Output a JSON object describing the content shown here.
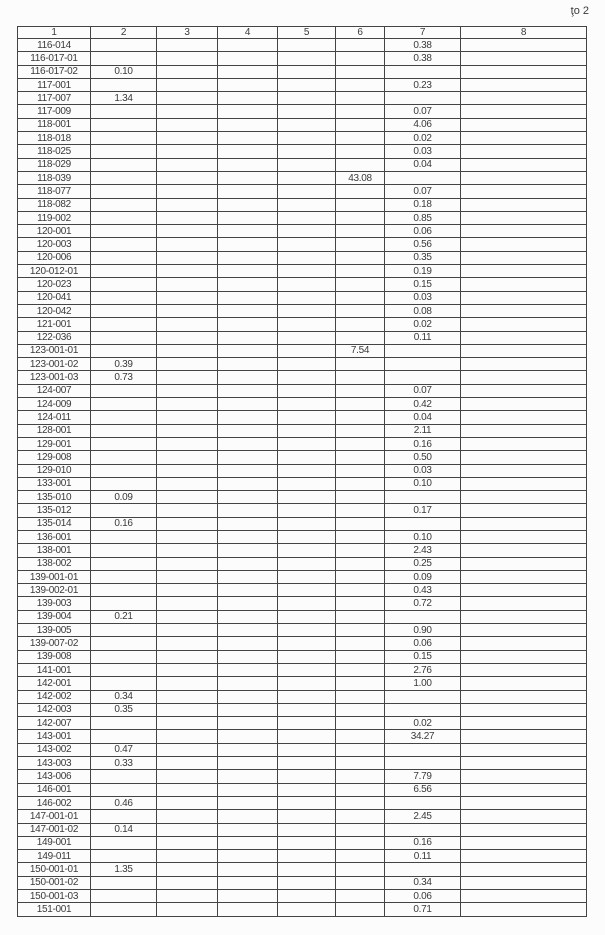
{
  "page_number": "ţo 2",
  "table": {
    "headers": [
      "1",
      "2",
      "3",
      "4",
      "5",
      "6",
      "7",
      "8"
    ],
    "rows": [
      [
        "116-014",
        "",
        "",
        "",
        "",
        "",
        "0.38",
        ""
      ],
      [
        "116-017-01",
        "",
        "",
        "",
        "",
        "",
        "0.38",
        ""
      ],
      [
        "116-017-02",
        "0.10",
        "",
        "",
        "",
        "",
        "",
        ""
      ],
      [
        "117-001",
        "",
        "",
        "",
        "",
        "",
        "0.23",
        ""
      ],
      [
        "117-007",
        "1.34",
        "",
        "",
        "",
        "",
        "",
        ""
      ],
      [
        "117-009",
        "",
        "",
        "",
        "",
        "",
        "0.07",
        ""
      ],
      [
        "118-001",
        "",
        "",
        "",
        "",
        "",
        "4.06",
        ""
      ],
      [
        "118-018",
        "",
        "",
        "",
        "",
        "",
        "0.02",
        ""
      ],
      [
        "118-025",
        "",
        "",
        "",
        "",
        "",
        "0.03",
        ""
      ],
      [
        "118-029",
        "",
        "",
        "",
        "",
        "",
        "0.04",
        ""
      ],
      [
        "118-039",
        "",
        "",
        "",
        "",
        "43.08",
        "",
        ""
      ],
      [
        "118-077",
        "",
        "",
        "",
        "",
        "",
        "0.07",
        ""
      ],
      [
        "118-082",
        "",
        "",
        "",
        "",
        "",
        "0.18",
        ""
      ],
      [
        "119-002",
        "",
        "",
        "",
        "",
        "",
        "0.85",
        ""
      ],
      [
        "120-001",
        "",
        "",
        "",
        "",
        "",
        "0.06",
        ""
      ],
      [
        "120-003",
        "",
        "",
        "",
        "",
        "",
        "0.56",
        ""
      ],
      [
        "120-006",
        "",
        "",
        "",
        "",
        "",
        "0.35",
        ""
      ],
      [
        "120-012-01",
        "",
        "",
        "",
        "",
        "",
        "0.19",
        ""
      ],
      [
        "120-023",
        "",
        "",
        "",
        "",
        "",
        "0.15",
        ""
      ],
      [
        "120-041",
        "",
        "",
        "",
        "",
        "",
        "0.03",
        ""
      ],
      [
        "120-042",
        "",
        "",
        "",
        "",
        "",
        "0.08",
        ""
      ],
      [
        "121-001",
        "",
        "",
        "",
        "",
        "",
        "0.02",
        ""
      ],
      [
        "122-036",
        "",
        "",
        "",
        "",
        "",
        "0.11",
        ""
      ],
      [
        "123-001-01",
        "",
        "",
        "",
        "",
        "7.54",
        "",
        ""
      ],
      [
        "123-001-02",
        "0.39",
        "",
        "",
        "",
        "",
        "",
        ""
      ],
      [
        "123-001-03",
        "0.73",
        "",
        "",
        "",
        "",
        "",
        ""
      ],
      [
        "124-007",
        "",
        "",
        "",
        "",
        "",
        "0.07",
        ""
      ],
      [
        "124-009",
        "",
        "",
        "",
        "",
        "",
        "0.42",
        ""
      ],
      [
        "124-011",
        "",
        "",
        "",
        "",
        "",
        "0.04",
        ""
      ],
      [
        "128-001",
        "",
        "",
        "",
        "",
        "",
        "2.11",
        ""
      ],
      [
        "129-001",
        "",
        "",
        "",
        "",
        "",
        "0.16",
        ""
      ],
      [
        "129-008",
        "",
        "",
        "",
        "",
        "",
        "0.50",
        ""
      ],
      [
        "129-010",
        "",
        "",
        "",
        "",
        "",
        "0.03",
        ""
      ],
      [
        "133-001",
        "",
        "",
        "",
        "",
        "",
        "0.10",
        ""
      ],
      [
        "135-010",
        "0.09",
        "",
        "",
        "",
        "",
        "",
        ""
      ],
      [
        "135-012",
        "",
        "",
        "",
        "",
        "",
        "0.17",
        ""
      ],
      [
        "135-014",
        "0.16",
        "",
        "",
        "",
        "",
        "",
        ""
      ],
      [
        "136-001",
        "",
        "",
        "",
        "",
        "",
        "0.10",
        ""
      ],
      [
        "138-001",
        "",
        "",
        "",
        "",
        "",
        "2.43",
        ""
      ],
      [
        "138-002",
        "",
        "",
        "",
        "",
        "",
        "0.25",
        ""
      ],
      [
        "139-001-01",
        "",
        "",
        "",
        "",
        "",
        "0.09",
        ""
      ],
      [
        "139-002-01",
        "",
        "",
        "",
        "",
        "",
        "0.43",
        ""
      ],
      [
        "139-003",
        "",
        "",
        "",
        "",
        "",
        "0.72",
        ""
      ],
      [
        "139-004",
        "0.21",
        "",
        "",
        "",
        "",
        "",
        ""
      ],
      [
        "139-005",
        "",
        "",
        "",
        "",
        "",
        "0.90",
        ""
      ],
      [
        "139-007-02",
        "",
        "",
        "",
        "",
        "",
        "0.06",
        ""
      ],
      [
        "139-008",
        "",
        "",
        "",
        "",
        "",
        "0.15",
        ""
      ],
      [
        "141-001",
        "",
        "",
        "",
        "",
        "",
        "2.76",
        ""
      ],
      [
        "142-001",
        "",
        "",
        "",
        "",
        "",
        "1.00",
        ""
      ],
      [
        "142-002",
        "0.34",
        "",
        "",
        "",
        "",
        "",
        ""
      ],
      [
        "142-003",
        "0.35",
        "",
        "",
        "",
        "",
        "",
        ""
      ],
      [
        "142-007",
        "",
        "",
        "",
        "",
        "",
        "0.02",
        ""
      ],
      [
        "143-001",
        "",
        "",
        "",
        "",
        "",
        "34.27",
        ""
      ],
      [
        "143-002",
        "0.47",
        "",
        "",
        "",
        "",
        "",
        ""
      ],
      [
        "143-003",
        "0.33",
        "",
        "",
        "",
        "",
        "",
        ""
      ],
      [
        "143-006",
        "",
        "",
        "",
        "",
        "",
        "7.79",
        ""
      ],
      [
        "146-001",
        "",
        "",
        "",
        "",
        "",
        "6.56",
        ""
      ],
      [
        "146-002",
        "0.46",
        "",
        "",
        "",
        "",
        "",
        ""
      ],
      [
        "147-001-01",
        "",
        "",
        "",
        "",
        "",
        "2.45",
        ""
      ],
      [
        "147-001-02",
        "0.14",
        "",
        "",
        "",
        "",
        "",
        ""
      ],
      [
        "149-001",
        "",
        "",
        "",
        "",
        "",
        "0.16",
        ""
      ],
      [
        "149-011",
        "",
        "",
        "",
        "",
        "",
        "0.11",
        ""
      ],
      [
        "150-001-01",
        "1.35",
        "",
        "",
        "",
        "",
        "",
        ""
      ],
      [
        "150-001-02",
        "",
        "",
        "",
        "",
        "",
        "0.34",
        ""
      ],
      [
        "150-001-03",
        "",
        "",
        "",
        "",
        "",
        "0.06",
        ""
      ],
      [
        "151-001",
        "",
        "",
        "",
        "",
        "",
        "0.71",
        ""
      ]
    ]
  }
}
